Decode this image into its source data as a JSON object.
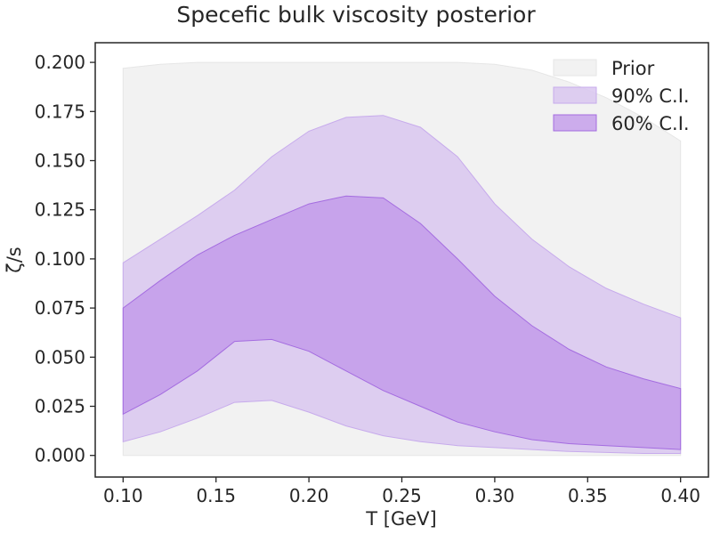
{
  "chart_data": {
    "type": "area",
    "title": "Specefic bulk viscosity posterior",
    "xlabel": "T [GeV]",
    "ylabel": "ζ/s",
    "xlim": [
      0.085,
      0.415
    ],
    "ylim": [
      -0.011,
      0.21
    ],
    "xticks": [
      "0.10",
      "0.15",
      "0.20",
      "0.25",
      "0.30",
      "0.35",
      "0.40"
    ],
    "yticks": [
      "0.000",
      "0.025",
      "0.050",
      "0.075",
      "0.100",
      "0.125",
      "0.150",
      "0.175",
      "0.200"
    ],
    "grid": false,
    "legend_position": "top-right",
    "series": [
      {
        "name": "Prior",
        "color": "#f2f2f2",
        "edge": "#e6e6e6",
        "x": [
          0.1,
          0.12,
          0.14,
          0.16,
          0.18,
          0.2,
          0.22,
          0.24,
          0.26,
          0.28,
          0.3,
          0.32,
          0.34,
          0.36,
          0.38,
          0.4
        ],
        "lower": [
          0,
          0,
          0,
          0,
          0,
          0,
          0,
          0,
          0,
          0,
          0,
          0,
          0,
          0,
          0,
          0
        ],
        "upper": [
          0.197,
          0.199,
          0.2,
          0.2,
          0.2,
          0.2,
          0.2,
          0.2,
          0.2,
          0.2,
          0.199,
          0.196,
          0.19,
          0.182,
          0.172,
          0.16
        ]
      },
      {
        "name": "90% C.I.",
        "color": "#d9c7f0",
        "edge": "#c7abec",
        "x": [
          0.1,
          0.12,
          0.14,
          0.16,
          0.18,
          0.2,
          0.22,
          0.24,
          0.26,
          0.28,
          0.3,
          0.32,
          0.34,
          0.36,
          0.38,
          0.4
        ],
        "lower": [
          0.007,
          0.012,
          0.019,
          0.027,
          0.028,
          0.022,
          0.015,
          0.01,
          0.007,
          0.005,
          0.004,
          0.003,
          0.002,
          0.0015,
          0.001,
          0.001
        ],
        "upper": [
          0.098,
          0.11,
          0.122,
          0.135,
          0.152,
          0.165,
          0.172,
          0.173,
          0.167,
          0.152,
          0.128,
          0.11,
          0.096,
          0.085,
          0.077,
          0.07
        ]
      },
      {
        "name": "60% C.I.",
        "color": "#bf94ea",
        "edge": "#a46ce0",
        "x": [
          0.1,
          0.12,
          0.14,
          0.16,
          0.18,
          0.2,
          0.22,
          0.24,
          0.26,
          0.28,
          0.3,
          0.32,
          0.34,
          0.36,
          0.38,
          0.4
        ],
        "lower": [
          0.021,
          0.031,
          0.043,
          0.058,
          0.059,
          0.053,
          0.043,
          0.033,
          0.025,
          0.017,
          0.012,
          0.008,
          0.006,
          0.005,
          0.004,
          0.003
        ],
        "upper": [
          0.075,
          0.089,
          0.102,
          0.112,
          0.12,
          0.128,
          0.132,
          0.131,
          0.118,
          0.1,
          0.081,
          0.066,
          0.054,
          0.045,
          0.039,
          0.034
        ]
      }
    ]
  }
}
